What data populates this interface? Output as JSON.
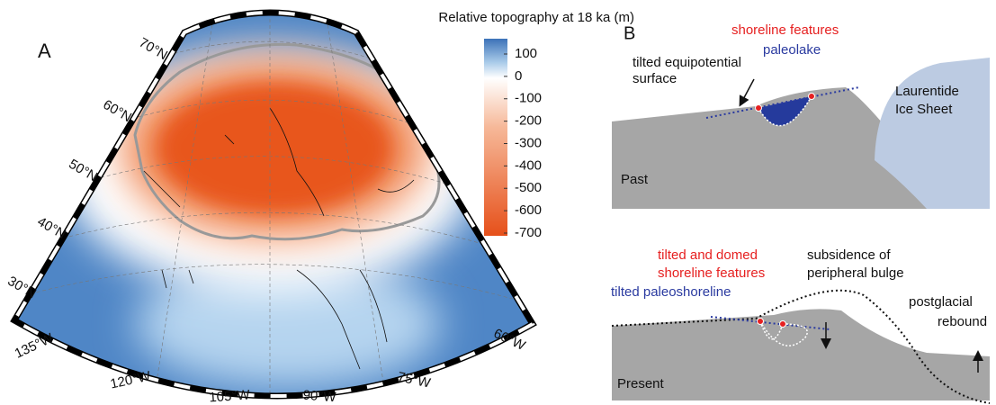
{
  "panel_a": {
    "label": "A",
    "colorbar": {
      "title": "Relative topography at 18 ka (m)",
      "ticks": [
        100,
        0,
        -100,
        -200,
        -300,
        -400,
        -500,
        -600,
        -700
      ]
    },
    "latitudes": [
      "70°N",
      "60°N",
      "50°N",
      "40°N",
      "30°N"
    ],
    "longitudes": [
      "135°W",
      "120°W",
      "105°W",
      "90°W",
      "75°W",
      "60°W"
    ]
  },
  "panel_b": {
    "label": "B",
    "past": {
      "label": "Past",
      "shoreline": "shoreline features",
      "lake": "paleolake",
      "surface": [
        "tilted equipotential",
        "surface"
      ],
      "ice": [
        "Laurentide",
        "Ice Sheet"
      ]
    },
    "present": {
      "label": "Present",
      "domed": [
        "tilted and domed",
        "shoreline features"
      ],
      "bulge": [
        "subsidence of",
        "peripheral bulge"
      ],
      "paleoshoreline": "tilted paleoshoreline",
      "rebound": [
        "postglacial",
        "rebound"
      ]
    }
  }
}
